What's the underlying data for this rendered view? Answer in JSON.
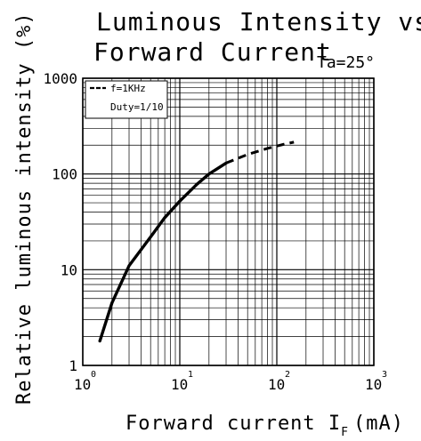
{
  "chart_data": {
    "type": "line",
    "title_line1": "Luminous Intensity vs",
    "title_line2": "Forward Current",
    "condition": "Ta=25°",
    "xlabel": "Forward current I",
    "xlabel_sub": "F",
    "xlabel_unit": "(mA)",
    "ylabel": "Relative luminous intensity (%)",
    "x_scale": "log",
    "y_scale": "log",
    "xlim": [
      1,
      1000
    ],
    "ylim": [
      1,
      1000
    ],
    "grid": true,
    "x_ticks": [
      {
        "base": "10",
        "exp": "0"
      },
      {
        "base": "10",
        "exp": "1"
      },
      {
        "base": "10",
        "exp": "2"
      },
      {
        "base": "10",
        "exp": "3"
      }
    ],
    "y_ticks": [
      "1",
      "10",
      "100",
      "1000"
    ],
    "legend": {
      "position": "top-left",
      "line1": "f=1KHz",
      "line2": "Duty=1/10"
    },
    "series": [
      {
        "style": "solid",
        "x": [
          1.5,
          2,
          3,
          5,
          7,
          10,
          15,
          20,
          30
        ],
        "y": [
          1.8,
          4.5,
          11,
          22,
          35,
          52,
          78,
          100,
          130
        ]
      },
      {
        "style": "dashed",
        "x": [
          30,
          50,
          80,
          120,
          150
        ],
        "y": [
          130,
          160,
          185,
          205,
          215
        ]
      }
    ]
  }
}
